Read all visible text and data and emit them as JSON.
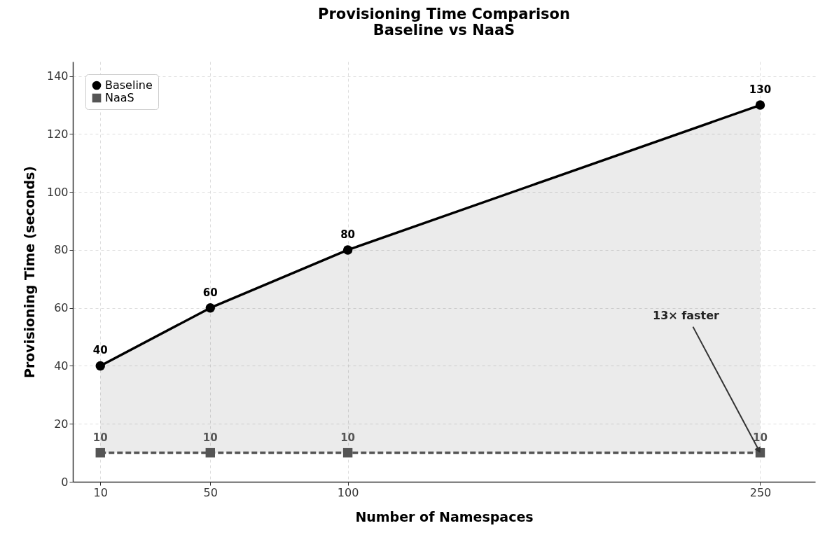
{
  "chart_data": {
    "type": "line",
    "title": "Provisioning Time Comparison\nBaseline vs NaaS",
    "xlabel": "Number of Namespaces",
    "ylabel": "Provisioning Time (seconds)",
    "x": [
      10,
      50,
      100,
      250
    ],
    "series": [
      {
        "name": "Baseline",
        "color": "#000000",
        "values": [
          40,
          60,
          80,
          130
        ],
        "lower": [
          10,
          10,
          10,
          10
        ],
        "upper": [
          40,
          60,
          80,
          130
        ],
        "marker": "circle",
        "line_style": "solid"
      },
      {
        "name": "NaaS",
        "color": "#555555",
        "values": [
          10,
          10,
          10,
          10
        ],
        "marker": "square",
        "line_style": "dashed"
      }
    ],
    "xlim": [
      0,
      270
    ],
    "xticks": [
      10,
      50,
      100,
      250
    ],
    "ylim": [
      0,
      145
    ],
    "yticks": [
      0,
      20,
      40,
      60,
      80,
      100,
      120,
      140
    ],
    "grid": true,
    "legend": "top left",
    "data_labels": true,
    "annotations": [
      {
        "text": "13× faster",
        "x": 250,
        "y": 10
      }
    ]
  }
}
